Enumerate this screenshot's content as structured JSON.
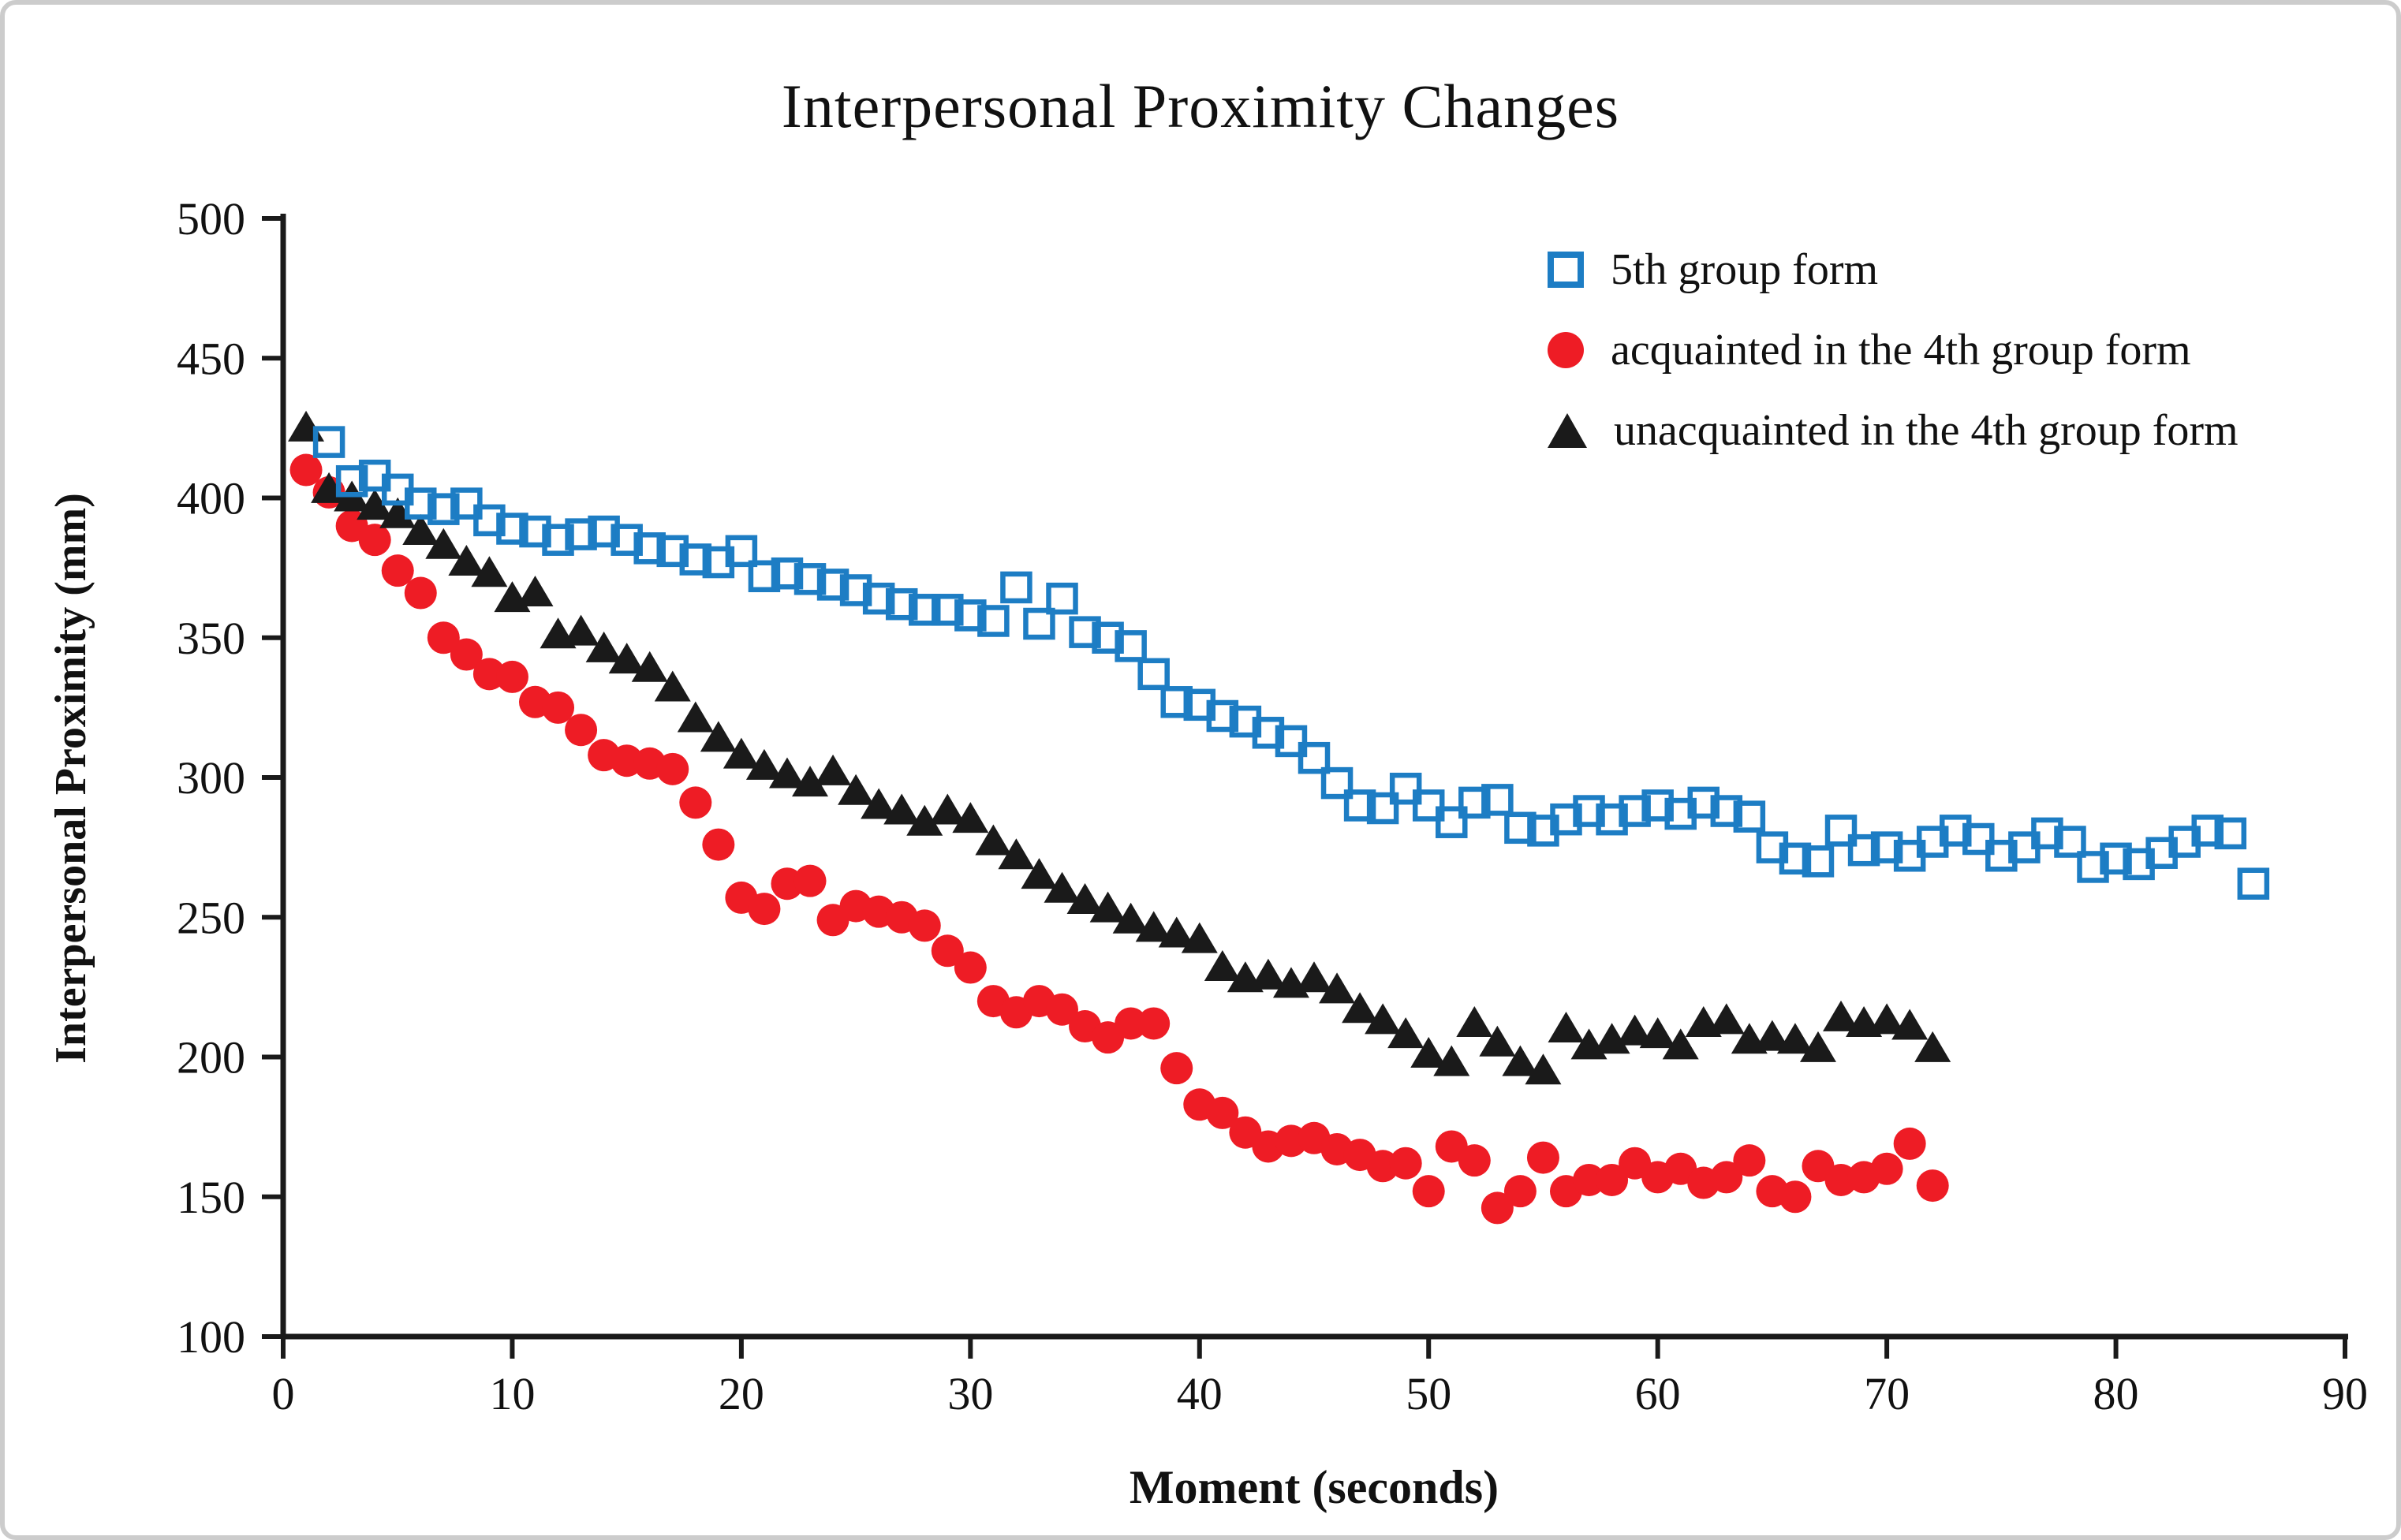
{
  "title": "Interpersonal Proximity Changes",
  "x_axis": {
    "label": "Moment (seconds)"
  },
  "y_axis": {
    "label": "Interpersonal Proximity (mm)"
  },
  "legend": {
    "items": [
      {
        "label": "5th group form",
        "marker": "open-square",
        "color": "#1d7dc4"
      },
      {
        "label": "acquainted in the 4th group form",
        "marker": "filled-circle",
        "color": "#ee1c25"
      },
      {
        "label": "unacquainted in the 4th group form",
        "marker": "filled-triangle",
        "color": "#1a1a1a"
      }
    ]
  },
  "chart_data": {
    "type": "scatter",
    "title": "Interpersonal Proximity Changes",
    "xlabel": "Moment (seconds)",
    "ylabel": "Interpersonal Proximity (mm)",
    "xlim": [
      0,
      90
    ],
    "ylim": [
      100,
      500
    ],
    "x_ticks": [
      0,
      10,
      20,
      30,
      40,
      50,
      60,
      70,
      80,
      90
    ],
    "y_ticks": [
      100,
      150,
      200,
      250,
      300,
      350,
      400,
      450,
      500
    ],
    "grid": false,
    "legend_position": "top-right",
    "series": [
      {
        "name": "acquainted in the 4th group form",
        "marker": "filled-circle",
        "color": "#ee1c25",
        "x": [
          1,
          2,
          3,
          4,
          5,
          6,
          7,
          8,
          9,
          10,
          11,
          12,
          13,
          14,
          15,
          16,
          17,
          18,
          19,
          20,
          21,
          22,
          23,
          24,
          25,
          26,
          27,
          28,
          29,
          30,
          31,
          32,
          33,
          34,
          35,
          36,
          37,
          38,
          39,
          40,
          41,
          42,
          43,
          44,
          45,
          46,
          47,
          48,
          49,
          50,
          51,
          52,
          53,
          54,
          55,
          56,
          57,
          58,
          59,
          60,
          61,
          62,
          63,
          64,
          65,
          66,
          67,
          68,
          69,
          70,
          71,
          72
        ],
        "y": [
          410,
          402,
          390,
          385,
          374,
          366,
          350,
          344,
          337,
          336,
          327,
          325,
          317,
          308,
          306,
          305,
          303,
          291,
          276,
          257,
          253,
          262,
          263,
          249,
          254,
          252,
          250,
          247,
          238,
          232,
          220,
          216,
          220,
          217,
          211,
          207,
          212,
          212,
          196,
          183,
          180,
          173,
          168,
          170,
          171,
          167,
          165,
          161,
          162,
          152,
          168,
          163,
          146,
          152,
          164,
          152,
          156,
          156,
          162,
          157,
          160,
          155,
          157,
          163,
          152,
          150,
          161,
          156,
          157,
          160,
          169,
          154
        ]
      },
      {
        "name": "unacquainted in the 4th group form",
        "marker": "filled-triangle",
        "color": "#1a1a1a",
        "x": [
          1,
          2,
          3,
          4,
          5,
          6,
          7,
          8,
          9,
          10,
          11,
          12,
          13,
          14,
          15,
          16,
          17,
          18,
          19,
          20,
          21,
          22,
          23,
          24,
          25,
          26,
          27,
          28,
          29,
          30,
          31,
          32,
          33,
          34,
          35,
          36,
          37,
          38,
          39,
          40,
          41,
          42,
          43,
          44,
          45,
          46,
          47,
          48,
          49,
          50,
          51,
          52,
          53,
          54,
          55,
          56,
          57,
          58,
          59,
          60,
          61,
          62,
          63,
          64,
          65,
          66,
          67,
          68,
          69,
          70,
          71,
          72
        ],
        "y": [
          425,
          403,
          400,
          397,
          394,
          388,
          383,
          377,
          373,
          364,
          366,
          351,
          352,
          346,
          342,
          339,
          332,
          321,
          314,
          308,
          304,
          301,
          298,
          302,
          295,
          290,
          288,
          284,
          288,
          285,
          277,
          272,
          265,
          260,
          256,
          253,
          249,
          246,
          244,
          242,
          232,
          228,
          229,
          226,
          228,
          224,
          217,
          213,
          208,
          201,
          198,
          212,
          205,
          198,
          195,
          210,
          204,
          206,
          209,
          208,
          204,
          212,
          213,
          206,
          207,
          206,
          203,
          214,
          212,
          213,
          211,
          203
        ]
      },
      {
        "name": "5th group form",
        "marker": "open-square",
        "color": "#1d7dc4",
        "x": [
          2,
          3,
          4,
          5,
          6,
          7,
          8,
          9,
          10,
          11,
          12,
          13,
          14,
          15,
          16,
          17,
          18,
          19,
          20,
          21,
          22,
          23,
          24,
          25,
          26,
          27,
          28,
          29,
          30,
          31,
          32,
          33,
          34,
          35,
          36,
          37,
          38,
          39,
          40,
          41,
          42,
          43,
          44,
          45,
          46,
          47,
          48,
          49,
          50,
          51,
          52,
          53,
          54,
          55,
          56,
          57,
          58,
          59,
          60,
          61,
          62,
          63,
          64,
          65,
          66,
          67,
          68,
          69,
          70,
          71,
          72,
          73,
          74,
          75,
          76,
          77,
          78,
          79,
          80,
          81,
          82,
          83,
          84,
          85,
          86
        ],
        "y": [
          420,
          406,
          408,
          403,
          398,
          396,
          398,
          392,
          389,
          388,
          385,
          387,
          388,
          385,
          382,
          381,
          378,
          377,
          381,
          372,
          373,
          371,
          369,
          367,
          364,
          362,
          360,
          360,
          358,
          356,
          368,
          355,
          364,
          352,
          350,
          347,
          337,
          327,
          326,
          322,
          320,
          316,
          313,
          307,
          298,
          290,
          289,
          296,
          290,
          284,
          291,
          292,
          282,
          281,
          285,
          288,
          285,
          288,
          290,
          287,
          291,
          288,
          286,
          275,
          271,
          270,
          281,
          274,
          275,
          272,
          277,
          281,
          278,
          272,
          275,
          280,
          277,
          268,
          271,
          269,
          273,
          277,
          281,
          280,
          262
        ]
      }
    ]
  }
}
